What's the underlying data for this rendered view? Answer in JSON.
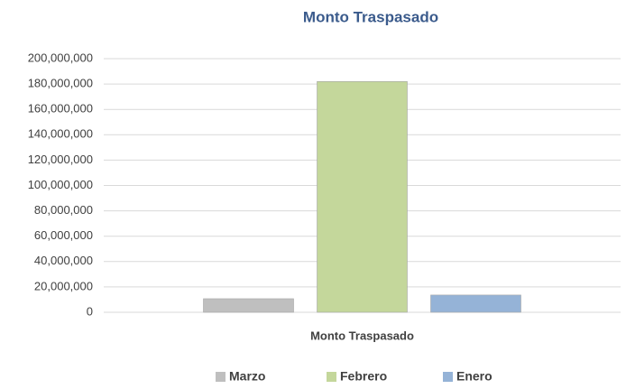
{
  "chart_data": {
    "type": "bar",
    "title": "Monto Traspasado",
    "categories": [
      "Monto Traspasado"
    ],
    "series": [
      {
        "name": "Marzo",
        "color": "#bfbfbf",
        "values": [
          10700000
        ]
      },
      {
        "name": "Febrero",
        "color": "#c4d79b",
        "values": [
          182000000
        ]
      },
      {
        "name": "Enero",
        "color": "#95b3d7",
        "values": [
          13600000
        ]
      }
    ],
    "ylim": [
      0,
      200000000
    ],
    "yticks": [
      0,
      {
        "value": 20000000,
        "label": "20,000,000"
      },
      {
        "value": 40000000,
        "label": "40,000,000"
      },
      {
        "value": 60000000,
        "label": "60,000,000"
      },
      {
        "value": 80000000,
        "label": "80,000,000"
      },
      {
        "value": 100000000,
        "label": "100,000,000"
      },
      {
        "value": 120000000,
        "label": "120,000,000"
      },
      {
        "value": 140000000,
        "label": "140,000,000"
      },
      {
        "value": 160000000,
        "label": "160,000,000"
      },
      {
        "value": 180000000,
        "label": "180,000,000"
      },
      {
        "value": 200000000,
        "label": "200,000,000"
      }
    ],
    "grid": true,
    "legend": "bottom"
  }
}
